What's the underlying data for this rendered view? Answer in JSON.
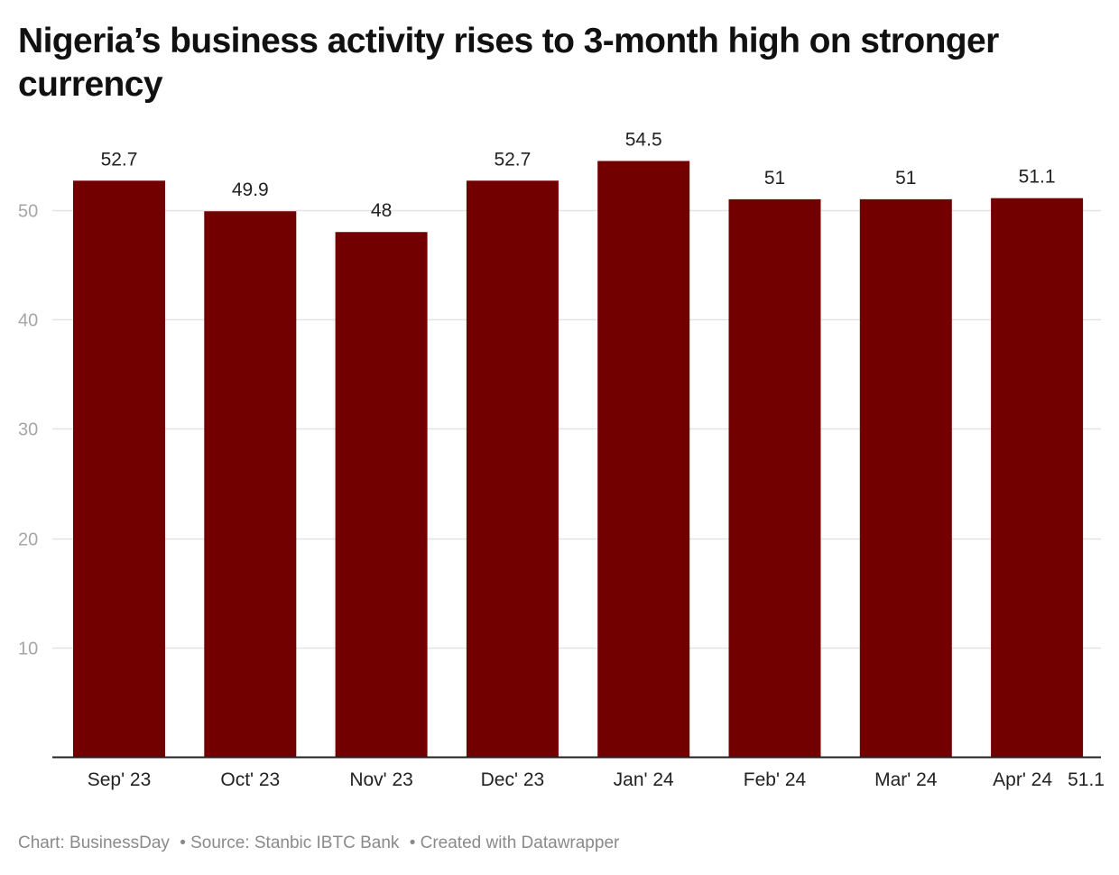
{
  "chart_data": {
    "type": "bar",
    "title": "Nigeria’s business activity rises to 3-month high on stronger currency",
    "xlabel": "",
    "ylabel": "",
    "categories": [
      "Sep' 23",
      "Oct' 23",
      "Nov' 23",
      "Dec' 23",
      "Jan' 24",
      "Feb' 24",
      "Mar' 24",
      "Apr' 24"
    ],
    "values": [
      52.7,
      49.9,
      48,
      52.7,
      54.5,
      51,
      51,
      51.1
    ],
    "value_labels": [
      "52.7",
      "49.9",
      "48",
      "52.7",
      "54.5",
      "51",
      "51",
      "51.1"
    ],
    "last_category_inline_label": "51.1",
    "yticks": [
      10,
      20,
      30,
      40,
      50
    ],
    "ytick_labels": [
      "10",
      "20",
      "30",
      "40",
      "50"
    ],
    "ylim": [
      0,
      58
    ],
    "grid": true,
    "legend": "none",
    "bar_color": "#730000"
  },
  "footer": {
    "chart_credit": "Chart: BusinessDay",
    "source": "• Source: Stanbic IBTC Bank",
    "created_with": "• Created with Datawrapper"
  }
}
